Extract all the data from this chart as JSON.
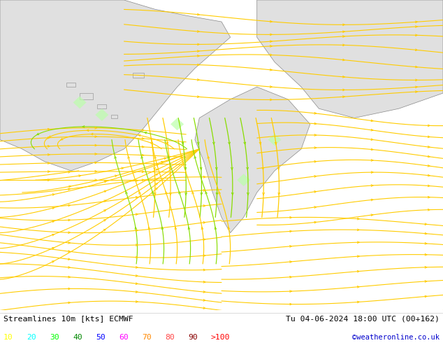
{
  "title_left": "Streamlines 10m [kts] ECMWF",
  "title_right": "Tu 04-06-2024 18:00 UTC (00+162)",
  "credit": "©weatheronline.co.uk",
  "legend_values": [
    "10",
    "20",
    "30",
    "40",
    "50",
    "60",
    "70",
    "80",
    "90",
    ">100"
  ],
  "legend_colors_actual": [
    "#ffff00",
    "#00ffff",
    "#00ff00",
    "#008800",
    "#0000ff",
    "#ff00ff",
    "#ff8800",
    "#ff4444",
    "#880000",
    "#ff0000"
  ],
  "bg_color": "#bbffaa",
  "land_color": "#e0e0e0",
  "border_color": "#888888",
  "stream_color_yellow": "#ffcc00",
  "stream_color_green": "#88dd00",
  "text_color": "#000000",
  "fig_width": 6.34,
  "fig_height": 4.9,
  "dpi": 100,
  "bottom_bar_color": "#ffffff",
  "credit_color": "#0000cc"
}
